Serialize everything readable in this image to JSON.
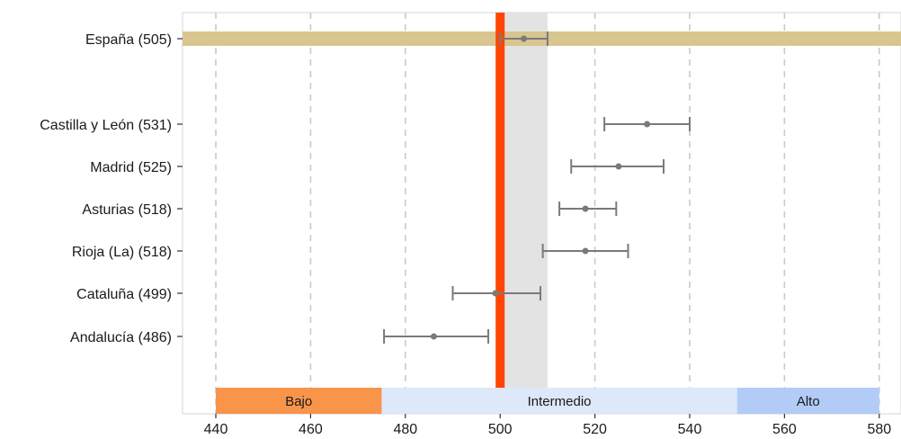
{
  "chart_data": {
    "type": "errorbar",
    "title": "",
    "xlabel": "",
    "ylabel": "",
    "xlim": [
      433,
      584
    ],
    "x_ticks": [
      440,
      460,
      480,
      500,
      520,
      540,
      560,
      580
    ],
    "grid": "vertical dashed",
    "reference_line": {
      "value": 500,
      "color": "#ff4500"
    },
    "reference_band": {
      "from": 500,
      "to": 510,
      "color": "#e3e3e3"
    },
    "levels": [
      {
        "label": "Bajo",
        "from": 440,
        "to": 475,
        "color": "#f9944b"
      },
      {
        "label": "Intermedio",
        "from": 475,
        "to": 550,
        "color": "#dde8fb"
      },
      {
        "label": "Alto",
        "from": 550,
        "to": 580,
        "color": "#b2cbf7"
      }
    ],
    "categories": [
      "España (505)",
      "Castilla y León (531)",
      "Madrid (525)",
      "Asturias (518)",
      "Rioja (La) (518)",
      "Cataluña (499)",
      "Andalucía (486)"
    ],
    "values": [
      505,
      531,
      525,
      518,
      518,
      499,
      486
    ],
    "ci_low": [
      500,
      522,
      515,
      512.5,
      509,
      490,
      475.5
    ],
    "ci_high": [
      510,
      540,
      534.5,
      524.5,
      527,
      508.5,
      497.5
    ],
    "highlight_row": {
      "category": "España (505)",
      "color": "#d9c58f"
    }
  }
}
